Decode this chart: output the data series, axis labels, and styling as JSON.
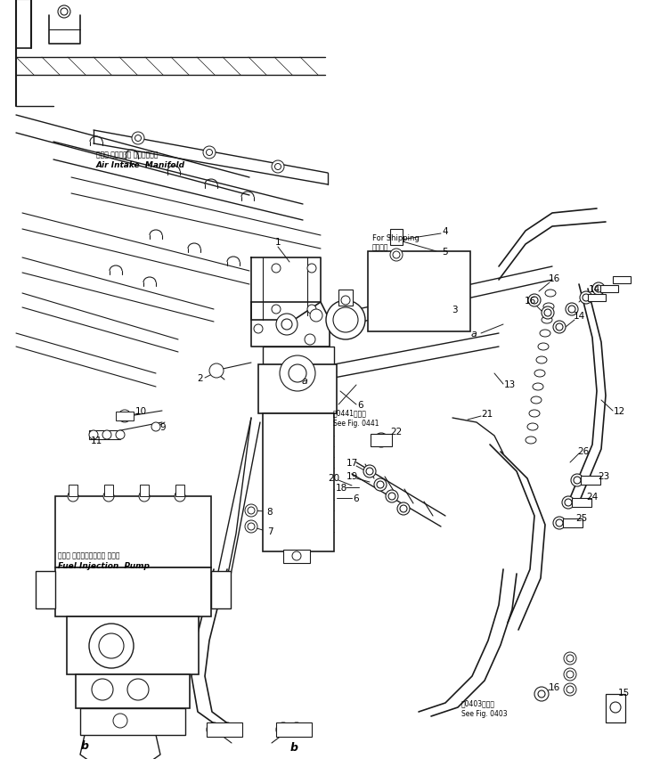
{
  "bg_color": "#ffffff",
  "line_color": "#1a1a1a",
  "fig_width": 7.32,
  "fig_height": 8.53,
  "dpi": 100,
  "title": "",
  "annotations": {
    "air_intake_jp": "エアー インテーク マニホールド",
    "air_intake_en": "Air Intake  Manifold",
    "fuel_pump_jp": "フェル インジェクション ポンプ",
    "fuel_pump_en": "Fuel Injection  Pump",
    "for_shipping_jp": "運搜部品",
    "for_shipping_en": "For Shipping",
    "see_0441_jp": "㄂0441図参照",
    "see_0441_en": "See Fig. 0441",
    "see_0403_jp": "㄂0403図参照",
    "see_0403_en": "See Fig. 0403"
  }
}
